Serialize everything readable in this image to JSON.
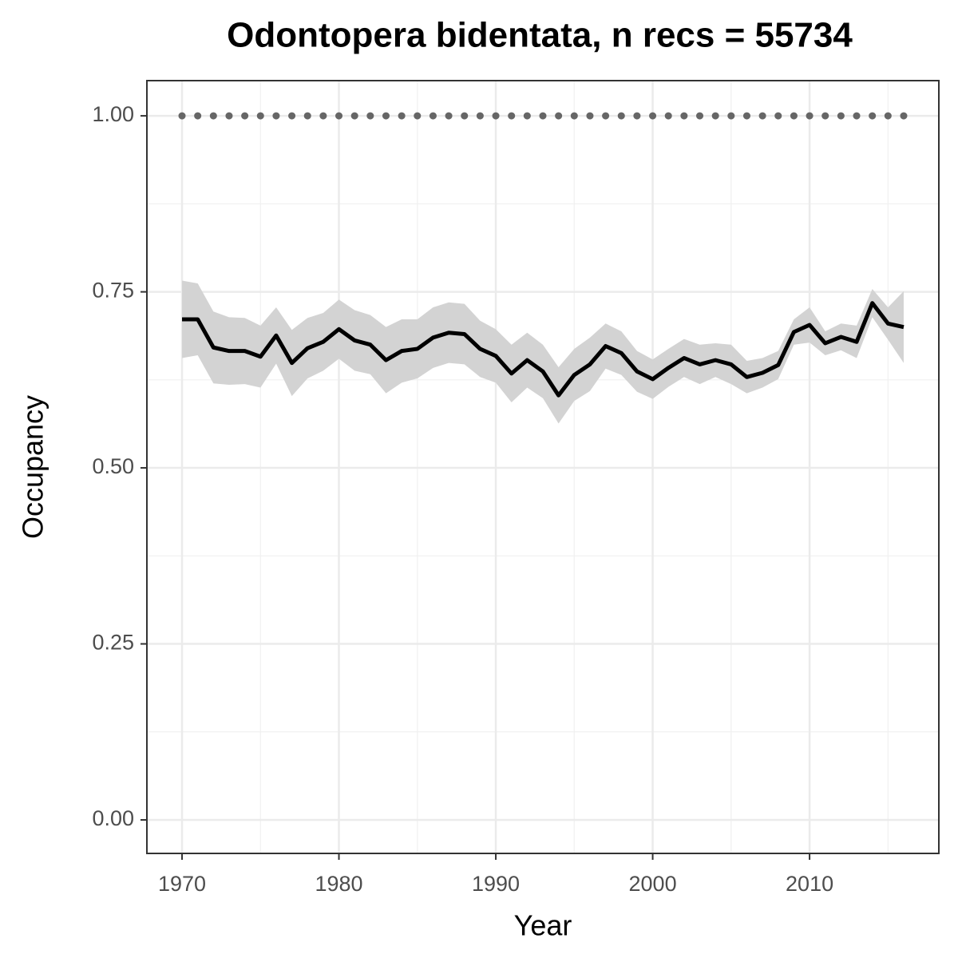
{
  "chart_data": {
    "type": "line",
    "title": "Odontopera bidentata, n recs = 55734",
    "x_label": "Year",
    "y_label": "Occupancy",
    "x": [
      1970,
      1971,
      1972,
      1973,
      1974,
      1975,
      1976,
      1977,
      1978,
      1979,
      1980,
      1981,
      1982,
      1983,
      1984,
      1985,
      1986,
      1987,
      1988,
      1989,
      1990,
      1991,
      1992,
      1993,
      1994,
      1995,
      1996,
      1997,
      1998,
      1999,
      2000,
      2001,
      2002,
      2003,
      2004,
      2005,
      2006,
      2007,
      2008,
      2009,
      2010,
      2011,
      2012,
      2013,
      2014,
      2015,
      2016
    ],
    "series": [
      {
        "color": "#000000",
        "band_color": "#d3d3d3",
        "values": [
          0.711,
          0.711,
          0.671,
          0.666,
          0.666,
          0.658,
          0.688,
          0.649,
          0.67,
          0.679,
          0.697,
          0.681,
          0.675,
          0.653,
          0.666,
          0.669,
          0.685,
          0.692,
          0.69,
          0.669,
          0.659,
          0.634,
          0.653,
          0.637,
          0.603,
          0.632,
          0.647,
          0.673,
          0.663,
          0.637,
          0.626,
          0.642,
          0.656,
          0.647,
          0.653,
          0.647,
          0.629,
          0.635,
          0.646,
          0.693,
          0.703,
          0.677,
          0.686,
          0.679,
          0.734,
          0.705,
          0.7
        ],
        "upper": [
          0.766,
          0.762,
          0.722,
          0.714,
          0.713,
          0.702,
          0.728,
          0.696,
          0.713,
          0.72,
          0.739,
          0.724,
          0.717,
          0.7,
          0.711,
          0.711,
          0.728,
          0.735,
          0.733,
          0.709,
          0.697,
          0.675,
          0.692,
          0.675,
          0.643,
          0.669,
          0.685,
          0.705,
          0.694,
          0.666,
          0.654,
          0.669,
          0.683,
          0.675,
          0.677,
          0.675,
          0.652,
          0.656,
          0.666,
          0.711,
          0.728,
          0.694,
          0.705,
          0.702,
          0.754,
          0.728,
          0.751
        ],
        "lower": [
          0.656,
          0.66,
          0.62,
          0.618,
          0.619,
          0.614,
          0.648,
          0.602,
          0.627,
          0.638,
          0.655,
          0.638,
          0.633,
          0.606,
          0.621,
          0.627,
          0.642,
          0.649,
          0.647,
          0.629,
          0.621,
          0.593,
          0.614,
          0.599,
          0.563,
          0.595,
          0.609,
          0.641,
          0.632,
          0.608,
          0.598,
          0.615,
          0.629,
          0.619,
          0.629,
          0.619,
          0.606,
          0.614,
          0.626,
          0.675,
          0.678,
          0.66,
          0.667,
          0.656,
          0.714,
          0.682,
          0.649
        ]
      },
      {
        "color": "#666666",
        "style": "dotted",
        "values": [
          1,
          1,
          1,
          1,
          1,
          1,
          1,
          1,
          1,
          1,
          1,
          1,
          1,
          1,
          1,
          1,
          1,
          1,
          1,
          1,
          1,
          1,
          1,
          1,
          1,
          1,
          1,
          1,
          1,
          1,
          1,
          1,
          1,
          1,
          1,
          1,
          1,
          1,
          1,
          1,
          1,
          1,
          1,
          1,
          1,
          1,
          1
        ]
      }
    ],
    "xlim": [
      1967.76,
      2018.24
    ],
    "xticks": [
      1970,
      1980,
      1990,
      2000,
      2010
    ],
    "ylim": [
      -0.0476,
      1.05
    ],
    "yticks": [
      {
        "value": 0,
        "label": "0.00"
      },
      {
        "value": 0.25,
        "label": "0.25"
      },
      {
        "value": 0.5,
        "label": "0.50"
      },
      {
        "value": 0.75,
        "label": "0.75"
      },
      {
        "value": 1,
        "label": "1.00"
      }
    ],
    "grid": true
  }
}
